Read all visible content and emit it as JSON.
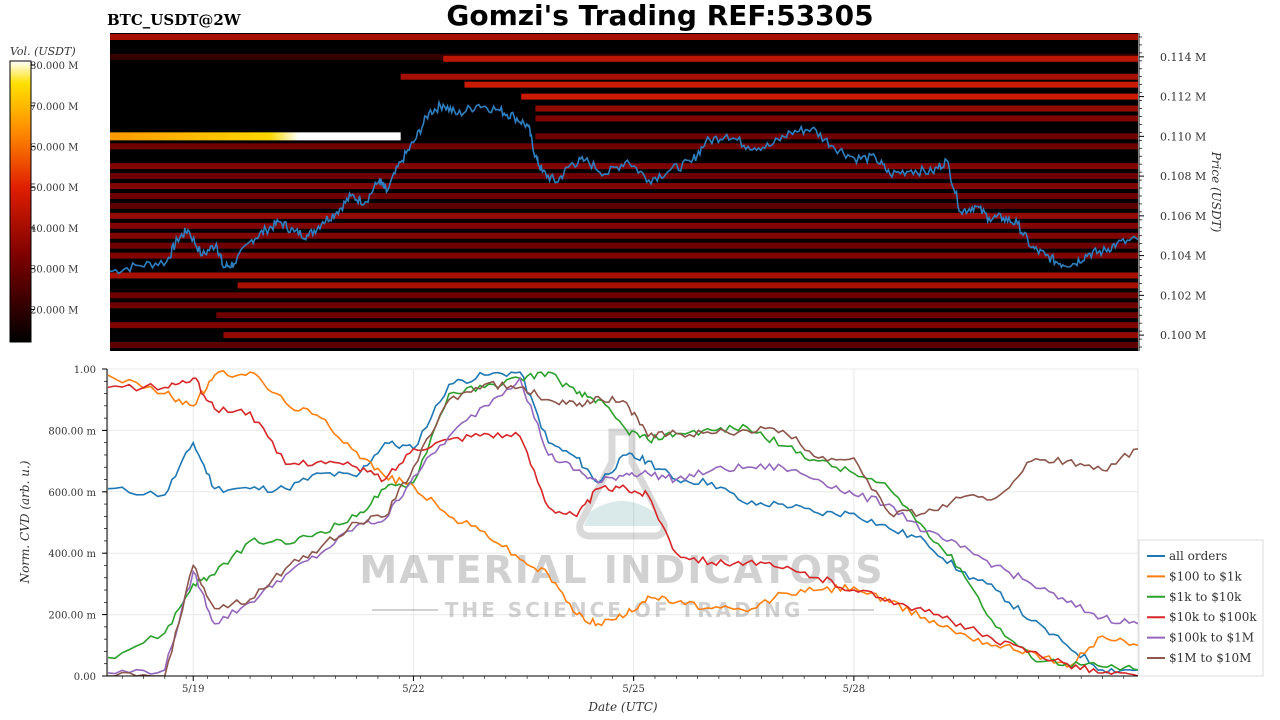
{
  "header": {
    "title": "Gomzi's Trading REF:53305",
    "symbol": "BTC_USDT@2W"
  },
  "watermark": {
    "line1": "MATERIAL INDICATORS",
    "line2": "THE SCIENCE OF TRADING"
  },
  "colors": {
    "price_line": "#2f7fc0",
    "background_heatmap": "#000000",
    "grid": "#e8e8e8"
  },
  "chart_data": [
    {
      "type": "heatmap",
      "title": "",
      "xlabel": "",
      "ylabel": "Price (USDT)",
      "colorbar_label": "Vol. (USDT)",
      "colorbar_ticks": [
        "80.000 M",
        "70.000 M",
        "60.000 M",
        "50.000 M",
        "40.000 M",
        "30.000 M",
        "20.000 M"
      ],
      "colorbar_values": [
        80,
        70,
        60,
        50,
        40,
        30,
        20
      ],
      "colorbar_range": [
        12,
        81
      ],
      "y_ticks": [
        "0.114 M",
        "0.112 M",
        "0.110 M",
        "0.108 M",
        "0.106 M",
        "0.104 M",
        "0.102 M",
        "0.100 M"
      ],
      "y_tick_values": [
        114000,
        112000,
        110000,
        108000,
        106000,
        104000,
        102000,
        100000
      ],
      "ylim": [
        99200,
        115200
      ],
      "x_range_days": [
        0,
        14.5
      ],
      "bands": [
        {
          "price": 115000,
          "start_day": 0,
          "intensity": 0.45
        },
        {
          "price": 114000,
          "start_day": 0,
          "intensity": 0.15
        },
        {
          "price": 113900,
          "start_day": 4.7,
          "intensity": 0.5
        },
        {
          "price": 113000,
          "start_day": 4.1,
          "intensity": 0.45
        },
        {
          "price": 112600,
          "start_day": 5.0,
          "intensity": 0.55
        },
        {
          "price": 112000,
          "start_day": 5.8,
          "intensity": 0.55
        },
        {
          "price": 111400,
          "start_day": 6.0,
          "intensity": 0.4
        },
        {
          "price": 110900,
          "start_day": 6.0,
          "intensity": 0.35
        },
        {
          "price": 110000,
          "start_day": 0,
          "end_day": 4.1,
          "intensity": 1.0
        },
        {
          "price": 110000,
          "start_day": 6.0,
          "intensity": 0.3
        },
        {
          "price": 109500,
          "start_day": 0,
          "intensity": 0.3
        },
        {
          "price": 108500,
          "start_day": 0,
          "intensity": 0.35
        },
        {
          "price": 108000,
          "start_day": 0,
          "intensity": 0.3
        },
        {
          "price": 107500,
          "start_day": 0,
          "intensity": 0.35
        },
        {
          "price": 107000,
          "start_day": 0,
          "intensity": 0.3
        },
        {
          "price": 106500,
          "start_day": 0,
          "intensity": 0.25
        },
        {
          "price": 106000,
          "start_day": 0,
          "intensity": 0.4
        },
        {
          "price": 105500,
          "start_day": 0,
          "intensity": 0.35
        },
        {
          "price": 105000,
          "start_day": 0,
          "intensity": 0.35
        },
        {
          "price": 104500,
          "start_day": 0,
          "intensity": 0.3
        },
        {
          "price": 104000,
          "start_day": 0,
          "intensity": 0.35
        },
        {
          "price": 103000,
          "start_day": 0,
          "intensity": 0.45
        },
        {
          "price": 102500,
          "start_day": 1.8,
          "intensity": 0.45
        },
        {
          "price": 102000,
          "start_day": 0,
          "intensity": 0.3
        },
        {
          "price": 101500,
          "start_day": 0,
          "intensity": 0.3
        },
        {
          "price": 101000,
          "start_day": 1.5,
          "intensity": 0.3
        },
        {
          "price": 100500,
          "start_day": 0,
          "intensity": 0.35
        },
        {
          "price": 100000,
          "start_day": 1.6,
          "intensity": 0.4
        },
        {
          "price": 99500,
          "start_day": 0,
          "intensity": 0.25
        }
      ],
      "price_series": {
        "days": [
          0,
          0.4,
          0.8,
          0.95,
          1.1,
          1.3,
          1.5,
          1.6,
          1.75,
          2.0,
          2.2,
          2.4,
          2.6,
          2.8,
          3.0,
          3.2,
          3.4,
          3.6,
          3.8,
          3.9,
          4.1,
          4.3,
          4.5,
          4.7,
          4.9,
          5.2,
          5.5,
          5.7,
          5.9,
          6.0,
          6.1,
          6.3,
          6.5,
          6.7,
          7.0,
          7.3,
          7.6,
          7.9,
          8.2,
          8.4,
          8.7,
          9.0,
          9.3,
          9.6,
          9.9,
          10.2,
          10.5,
          10.8,
          11.0,
          11.3,
          11.6,
          11.8,
          12.0,
          12.2,
          12.4,
          12.6,
          12.8,
          13.0,
          13.2,
          13.4,
          13.6,
          13.8,
          14.0,
          14.2,
          14.5
        ],
        "prices": [
          103200,
          103500,
          103700,
          104800,
          105300,
          104000,
          104600,
          103400,
          103600,
          104800,
          105300,
          105700,
          105200,
          105000,
          105700,
          106200,
          107000,
          106700,
          107800,
          107200,
          108700,
          109800,
          111200,
          111600,
          111100,
          111600,
          111300,
          111000,
          110500,
          109000,
          108200,
          107700,
          108600,
          108800,
          108100,
          108800,
          107800,
          108300,
          108700,
          109700,
          110100,
          109500,
          109500,
          110200,
          110400,
          109500,
          108900,
          108900,
          108100,
          108300,
          108200,
          108800,
          106200,
          106500,
          105900,
          105900,
          105600,
          104400,
          104000,
          103600,
          103600,
          104100,
          104200,
          104600,
          104800
        ]
      }
    },
    {
      "type": "line",
      "title": "",
      "xlabel": "Date (UTC)",
      "ylabel": "Norm. CVD (arb. u.)",
      "ylim": [
        0,
        1
      ],
      "y_ticks": [
        "1.00",
        "800.00 m",
        "600.00 m",
        "400.00 m",
        "200.00 m",
        "0.00"
      ],
      "y_tick_values": [
        1.0,
        0.8,
        0.6,
        0.4,
        0.2,
        0.0
      ],
      "x_range_days": [
        0,
        14.5
      ],
      "x_ticks": [
        "5/19",
        "5/22",
        "5/25",
        "5/28"
      ],
      "x_tick_days": [
        1.2,
        4.3,
        7.4,
        10.5
      ],
      "legend_position": "right",
      "x": [
        0,
        0.8,
        1.2,
        1.5,
        2.0,
        2.5,
        3.0,
        3.5,
        3.9,
        4.3,
        4.8,
        5.3,
        5.8,
        6.2,
        6.6,
        6.9,
        7.3,
        7.6,
        8.0,
        8.5,
        9.0,
        9.5,
        10.0,
        10.5,
        11.0,
        11.5,
        12.0,
        12.5,
        13.0,
        13.5,
        14.0,
        14.5
      ],
      "series": [
        {
          "name": "all orders",
          "color": "#1f77b4",
          "values": [
            0.61,
            0.59,
            0.76,
            0.61,
            0.61,
            0.61,
            0.66,
            0.65,
            0.76,
            0.74,
            0.95,
            0.98,
            0.99,
            0.76,
            0.71,
            0.63,
            0.72,
            0.7,
            0.64,
            0.63,
            0.56,
            0.56,
            0.53,
            0.53,
            0.48,
            0.44,
            0.34,
            0.28,
            0.18,
            0.1,
            0.02,
            0.02
          ]
        },
        {
          "name": "$100 to $1k",
          "color": "#ff7f0e",
          "values": [
            0.98,
            0.92,
            0.88,
            0.98,
            0.99,
            0.89,
            0.84,
            0.73,
            0.65,
            0.62,
            0.52,
            0.47,
            0.38,
            0.33,
            0.2,
            0.17,
            0.2,
            0.26,
            0.24,
            0.22,
            0.21,
            0.27,
            0.28,
            0.29,
            0.24,
            0.19,
            0.14,
            0.1,
            0.08,
            0.03,
            0.13,
            0.1
          ]
        },
        {
          "name": "$1k to $10k",
          "color": "#2ca02c",
          "values": [
            0.06,
            0.14,
            0.3,
            0.33,
            0.44,
            0.43,
            0.47,
            0.52,
            0.61,
            0.63,
            0.92,
            0.94,
            0.97,
            0.99,
            0.92,
            0.9,
            0.8,
            0.77,
            0.79,
            0.8,
            0.81,
            0.75,
            0.7,
            0.66,
            0.61,
            0.48,
            0.35,
            0.16,
            0.06,
            0.04,
            0.03,
            0.02
          ]
        },
        {
          "name": "$10k to $100k",
          "color": "#d62728",
          "values": [
            0.94,
            0.94,
            0.97,
            0.87,
            0.86,
            0.69,
            0.7,
            0.68,
            0.64,
            0.74,
            0.77,
            0.79,
            0.78,
            0.55,
            0.52,
            0.61,
            0.61,
            0.59,
            0.4,
            0.37,
            0.37,
            0.35,
            0.32,
            0.28,
            0.25,
            0.21,
            0.17,
            0.11,
            0.08,
            0.04,
            0.01,
            0.0
          ]
        },
        {
          "name": "$100k to $1M",
          "color": "#9467bd",
          "values": [
            0.01,
            0.02,
            0.34,
            0.17,
            0.24,
            0.33,
            0.4,
            0.49,
            0.51,
            0.65,
            0.78,
            0.88,
            0.97,
            0.72,
            0.67,
            0.63,
            0.66,
            0.66,
            0.64,
            0.67,
            0.68,
            0.68,
            0.64,
            0.59,
            0.56,
            0.47,
            0.42,
            0.36,
            0.3,
            0.24,
            0.19,
            0.17
          ]
        },
        {
          "name": "$1M to $10M",
          "color": "#8c564b",
          "values": [
            0.0,
            0.0,
            0.36,
            0.22,
            0.25,
            0.35,
            0.42,
            0.5,
            0.52,
            0.68,
            0.9,
            0.95,
            0.94,
            0.9,
            0.88,
            0.91,
            0.89,
            0.78,
            0.79,
            0.79,
            0.8,
            0.8,
            0.71,
            0.71,
            0.53,
            0.53,
            0.58,
            0.58,
            0.7,
            0.7,
            0.67,
            0.74
          ]
        }
      ]
    }
  ]
}
